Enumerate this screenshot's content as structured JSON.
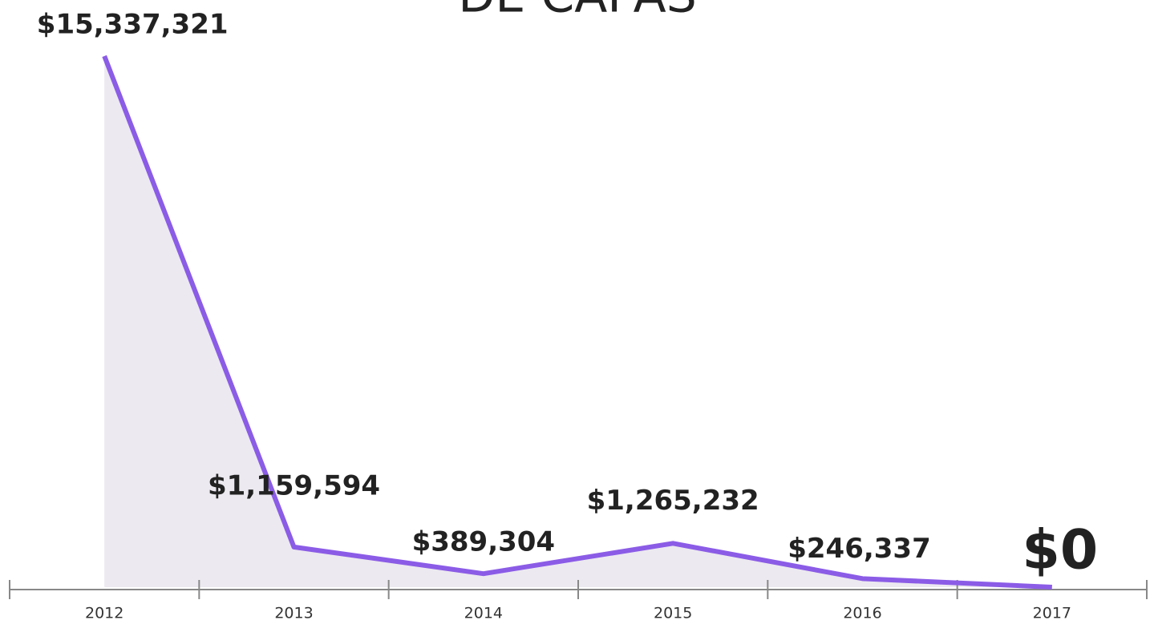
{
  "chart_data": {
    "type": "line",
    "title": "DE CAPAS",
    "categories": [
      "2012",
      "2013",
      "2014",
      "2015",
      "2016",
      "2017"
    ],
    "values": [
      15337321,
      1159594,
      389304,
      1265232,
      246337,
      0
    ],
    "value_labels": [
      "$15,337,321",
      "$1,159,594",
      "$389,304",
      "$1,265,232",
      "$246,337",
      "$0"
    ],
    "color": "#8b5ce6",
    "area_color": "#ece9f0",
    "ylim": [
      0,
      15337321
    ]
  }
}
